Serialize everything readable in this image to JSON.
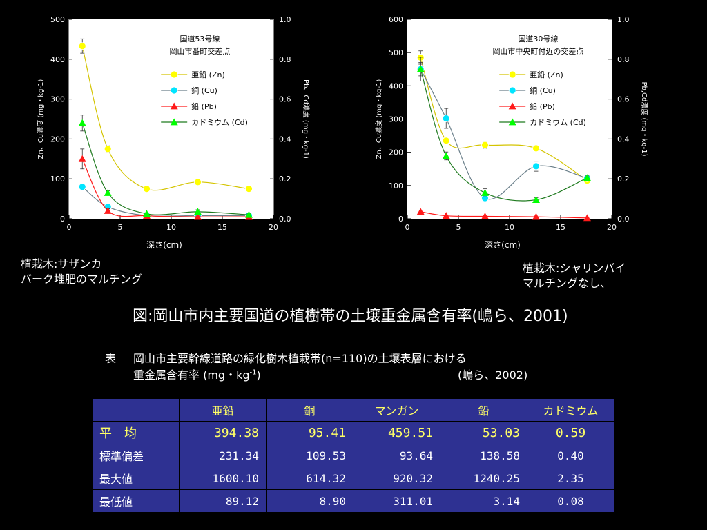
{
  "chart_data": [
    {
      "type": "line",
      "title_lines": [
        "国道53号線",
        "岡山市番町交差点"
      ],
      "xlabel": "深さ(cm)",
      "ylabel_left": "Zn、Cu濃度 (mg・kg-1)",
      "ylabel_right": "Pb、Cd濃度 (mg・kg-1)",
      "xlim": [
        0,
        20
      ],
      "ylim_left": [
        0,
        500
      ],
      "ylim_right": [
        0,
        1.0
      ],
      "x_ticks": [
        "0",
        "5",
        "10",
        "15",
        "20"
      ],
      "y_left_ticks": [
        "0",
        "100",
        "200",
        "300",
        "400",
        "500"
      ],
      "y_right_ticks": [
        "0.0",
        "0.2",
        "0.4",
        "0.6",
        "0.8",
        "1.0"
      ],
      "x": [
        1.3,
        3.8,
        7.6,
        12.6,
        17.6
      ],
      "series": [
        {
          "name": "亜鉛 (Zn)",
          "axis": "left",
          "color": "#ffff00",
          "marker": "circle",
          "values": [
            433,
            175,
            75,
            92,
            75
          ],
          "err": [
            18,
            8,
            6,
            6,
            6
          ]
        },
        {
          "name": "銅 (Cu)",
          "axis": "left",
          "color": "#00e5ff",
          "marker": "circle",
          "values": [
            80,
            30,
            8,
            8,
            8
          ],
          "err": [
            6,
            3,
            1,
            1,
            1
          ]
        },
        {
          "name": "鉛 (Pb)",
          "axis": "right",
          "color": "#ff1a1a",
          "marker": "triangle",
          "values": [
            0.3,
            0.04,
            0.015,
            0.01,
            0.01
          ],
          "err": [
            0.05,
            0.01,
            0,
            0,
            0
          ]
        },
        {
          "name": "カドミウム (Cd)",
          "axis": "right",
          "color": "#00ff00",
          "marker": "triangle",
          "values": [
            0.48,
            0.13,
            0.025,
            0.035,
            0.02
          ],
          "err": [
            0.04,
            0.01,
            0.005,
            0.01,
            0.005
          ]
        }
      ],
      "legend_position": "top-right"
    },
    {
      "type": "line",
      "title_lines": [
        "国道30号線",
        "岡山市中央町付近の交差点"
      ],
      "xlabel": "深さ(cm)",
      "ylabel_left": "Zn、Cu濃度 (mg・kg-1)",
      "ylabel_right": "Pb,Cd濃度 (mg・kg-1)",
      "xlim": [
        0,
        20
      ],
      "ylim_left": [
        0,
        600
      ],
      "ylim_right": [
        0,
        1.0
      ],
      "x_ticks": [
        "0",
        "5",
        "10",
        "15",
        "20"
      ],
      "y_left_ticks": [
        "0",
        "100",
        "200",
        "300",
        "400",
        "500",
        "600"
      ],
      "y_right_ticks": [
        "0.0",
        "0.2",
        "0.4",
        "0.6",
        "0.8",
        "1.0"
      ],
      "x": [
        1.3,
        3.8,
        7.6,
        12.6,
        17.6
      ],
      "series": [
        {
          "name": "亜鉛 (Zn)",
          "axis": "left",
          "color": "#ffff00",
          "marker": "circle",
          "values": [
            485,
            235,
            222,
            212,
            115
          ],
          "err": [
            20,
            8,
            10,
            8,
            5
          ]
        },
        {
          "name": "銅 (Cu)",
          "axis": "left",
          "color": "#00e5ff",
          "marker": "circle",
          "values": [
            450,
            302,
            62,
            158,
            122
          ],
          "err": [
            20,
            30,
            8,
            15,
            8
          ]
        },
        {
          "name": "鉛 (Pb)",
          "axis": "right",
          "color": "#ff1a1a",
          "marker": "triangle",
          "values": [
            0.035,
            0.015,
            0.012,
            0.01,
            0.004
          ],
          "err": [
            0,
            0,
            0,
            0,
            0
          ]
        },
        {
          "name": "カドミウム (Cd)",
          "axis": "right",
          "color": "#00ff00",
          "marker": "triangle",
          "values": [
            0.75,
            0.315,
            0.13,
            0.095,
            0.205
          ],
          "err": [
            0.06,
            0.02,
            0.02,
            0.01,
            0.01
          ]
        }
      ],
      "legend_position": "top-right"
    }
  ],
  "notes": {
    "left_line1": "植栽木:サザンカ",
    "left_line2": "バーク堆肥のマルチング",
    "right_line1": "植栽木:シャリンバイ",
    "right_line2": "マルチングなし、"
  },
  "figure_caption": "図:岡山市内主要国道の植樹帯の土壌重金属含有率(嶋ら、2001)",
  "table": {
    "caption_prefix": "表",
    "caption_line1": "岡山市主要幹線道路の緑化樹木植栽帯(n=110)の土壌表層における",
    "caption_line2": "重金属含有率 (mg・kg",
    "caption_sup": "-1",
    "caption_line2_end": ")",
    "citation": "(嶋ら、2002)",
    "headers": [
      "",
      "亜鉛",
      "銅",
      "マンガン",
      "鉛",
      "カドミウム"
    ],
    "rows": [
      {
        "label": "平　均",
        "values": [
          "394.38",
          "95.41",
          "459.51",
          "53.03",
          "0.59"
        ]
      },
      {
        "label": "標準偏差",
        "values": [
          "231.34",
          "109.53",
          "93.64",
          "138.58",
          "0.40"
        ]
      },
      {
        "label": "最大値",
        "values": [
          "1600.10",
          "614.32",
          "920.32",
          "1240.25",
          "2.35"
        ]
      },
      {
        "label": "最低値",
        "values": [
          "89.12",
          "8.90",
          "311.01",
          "3.14",
          "0.08"
        ]
      }
    ]
  }
}
